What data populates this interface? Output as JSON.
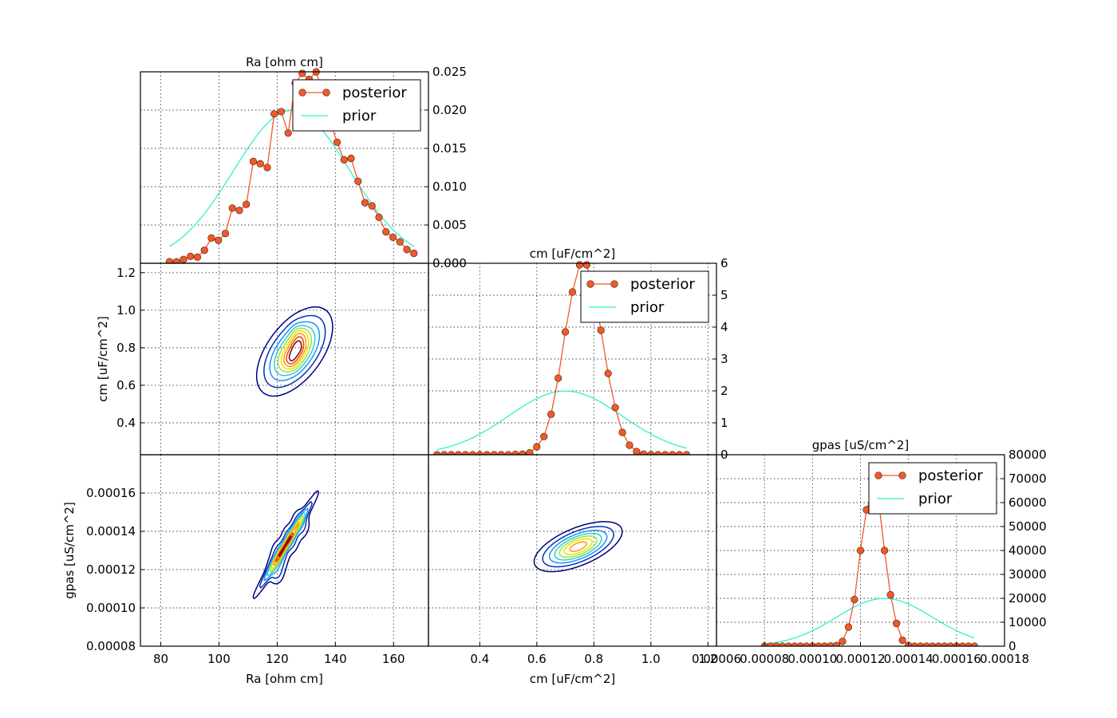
{
  "colors": {
    "posterior": "#F05A28",
    "posterior_marker_edge": "#3a1a0a",
    "prior": "#33F0C8",
    "contour_levels": [
      "#00007F",
      "#0033B2",
      "#1E90FF",
      "#33CCCC",
      "#99E24D",
      "#E6E600",
      "#FF9900",
      "#E64500",
      "#7F0000"
    ]
  },
  "chart_data": [
    {
      "type": "line",
      "panel": "Ra marginal",
      "title": "Ra [ohm cm]",
      "xlim": [
        73,
        172
      ],
      "ylim": [
        0,
        0.025
      ],
      "y_axis_side": "right",
      "xticks": [
        80,
        100,
        120,
        140,
        160
      ],
      "yticks": [
        0.0,
        0.005,
        0.01,
        0.015,
        0.02,
        0.025
      ],
      "ytick_labels": [
        "0.000",
        "0.005",
        "0.010",
        "0.015",
        "0.020",
        "0.025"
      ],
      "grid": true,
      "legend": "top-right",
      "series": [
        {
          "name": "posterior",
          "marker": "circle",
          "x": [
            83,
            85.4,
            87.8,
            90.2,
            92.6,
            95,
            97.4,
            99.8,
            102.2,
            104.6,
            107,
            109.4,
            111.8,
            114.2,
            116.6,
            119,
            121.4,
            123.8,
            126.2,
            128.6,
            131,
            133.4,
            135.8,
            138.2,
            140.6,
            143,
            145.4,
            147.8,
            150.2,
            152.6,
            155,
            157.4,
            159.8,
            162.2,
            164.6,
            167
          ],
          "values": [
            0.0002,
            0.0002,
            0.0005,
            0.0009,
            0.0008,
            0.0017,
            0.0033,
            0.003,
            0.0039,
            0.0072,
            0.0069,
            0.0077,
            0.0133,
            0.013,
            0.0125,
            0.0195,
            0.0198,
            0.017,
            0.0235,
            0.0248,
            0.024,
            0.025,
            0.022,
            0.0185,
            0.0158,
            0.0135,
            0.0137,
            0.0107,
            0.0079,
            0.0075,
            0.006,
            0.0041,
            0.0034,
            0.0028,
            0.0018,
            0.0013
          ]
        },
        {
          "name": "prior",
          "distribution": "normal",
          "mean": 125,
          "sd": 20
        }
      ]
    },
    {
      "type": "line",
      "panel": "cm marginal",
      "title": "cm [uF/cm^2]",
      "xlim": [
        0.22,
        1.23
      ],
      "ylim": [
        0,
        6
      ],
      "y_axis_side": "right",
      "yticks": [
        0,
        1,
        2,
        3,
        4,
        5,
        6
      ],
      "grid": true,
      "legend": "top-right",
      "series": [
        {
          "name": "posterior",
          "marker": "circle",
          "x": [
            0.25,
            0.275,
            0.3,
            0.325,
            0.35,
            0.375,
            0.4,
            0.425,
            0.45,
            0.475,
            0.5,
            0.525,
            0.55,
            0.575,
            0.6,
            0.625,
            0.65,
            0.675,
            0.7,
            0.725,
            0.75,
            0.775,
            0.8,
            0.825,
            0.85,
            0.875,
            0.9,
            0.925,
            0.95,
            0.975,
            1.0,
            1.025,
            1.05,
            1.075,
            1.1,
            1.125
          ],
          "values": [
            0,
            0,
            0,
            0,
            0,
            0,
            0,
            0,
            0,
            0,
            0,
            0.01,
            0.02,
            0.06,
            0.25,
            0.57,
            1.27,
            2.4,
            3.85,
            5.1,
            5.95,
            5.95,
            5.1,
            3.9,
            2.55,
            1.48,
            0.7,
            0.3,
            0.1,
            0.02,
            0,
            0,
            0,
            0,
            0,
            0
          ]
        },
        {
          "name": "prior",
          "distribution": "normal",
          "mean": 0.7,
          "sd": 0.2
        }
      ]
    },
    {
      "type": "line",
      "panel": "gpas marginal",
      "title": "gpas [uS/cm^2]",
      "xlim": [
        6e-05,
        0.00018
      ],
      "ylim": [
        0,
        80000
      ],
      "y_axis_side": "right",
      "xticks": [
        6e-05,
        8e-05,
        0.0001,
        0.00012,
        0.00014,
        0.00016,
        0.00018
      ],
      "xtick_labels": [
        "0.00006",
        "0.00008",
        "0.00010",
        "0.00012",
        "0.00014",
        "0.00016",
        "0.00018"
      ],
      "yticks": [
        0,
        10000,
        20000,
        30000,
        40000,
        50000,
        60000,
        70000,
        80000
      ],
      "grid": true,
      "legend": "top-right",
      "series": [
        {
          "name": "posterior",
          "marker": "circle",
          "x": [
            8e-05,
            8.25e-05,
            8.5e-05,
            8.75e-05,
            9e-05,
            9.25e-05,
            9.5e-05,
            9.75e-05,
            0.0001,
            0.0001025,
            0.000105,
            0.0001075,
            0.00011,
            0.0001125,
            0.000115,
            0.0001175,
            0.00012,
            0.0001225,
            0.000125,
            0.0001275,
            0.00013,
            0.0001325,
            0.000135,
            0.0001375,
            0.00014,
            0.0001425,
            0.000145,
            0.0001475,
            0.00015,
            0.0001525,
            0.000155,
            0.0001575,
            0.00016,
            0.0001625,
            0.000165,
            0.0001675
          ],
          "values": [
            0,
            0,
            0,
            0,
            0,
            0,
            0,
            0,
            0,
            0,
            0,
            100,
            300,
            2000,
            8000,
            19500,
            40000,
            57000,
            64000,
            61000,
            40000,
            21500,
            9500,
            2500,
            300,
            0,
            0,
            0,
            0,
            0,
            0,
            0,
            0,
            0,
            0,
            0
          ]
        },
        {
          "name": "prior",
          "distribution": "normal",
          "mean": 0.00013,
          "sd": 2e-05
        }
      ]
    },
    {
      "type": "contour",
      "panel": "cm vs Ra",
      "xlabel": "",
      "ylabel": "cm [uF/cm^2]",
      "xlim": [
        73,
        172
      ],
      "ylim": [
        0.23,
        1.25
      ],
      "yticks": [
        0.4,
        0.6,
        0.8,
        1.0,
        1.2
      ],
      "grid": true,
      "density": {
        "x_center": 126,
        "y_center": 0.78,
        "x_sd": 5.5,
        "y_sd": 0.1,
        "correlation": 0.55
      },
      "modes": [
        {
          "x": 125,
          "y": 0.73
        },
        {
          "x": 127,
          "y": 0.8
        },
        {
          "x": 127.5,
          "y": 0.87
        }
      ]
    },
    {
      "type": "contour",
      "panel": "gpas vs Ra",
      "xlabel": "Ra [ohm cm]",
      "ylabel": "gpas [uS/cm^2]",
      "xlim": [
        73,
        172
      ],
      "ylim": [
        8e-05,
        0.00018
      ],
      "xticks": [
        80,
        100,
        120,
        140,
        160
      ],
      "yticks": [
        8e-05,
        0.0001,
        0.00012,
        0.00014,
        0.00016
      ],
      "ytick_labels": [
        "0.00008",
        "0.00010",
        "0.00012",
        "0.00014",
        "0.00016"
      ],
      "grid": true,
      "density": {
        "x_center": 123,
        "y_center": 0.000133,
        "x_sd": 4.8,
        "y_sd": 1.2e-05,
        "correlation": 0.985
      },
      "modes": [
        {
          "x": 121,
          "y": 0.000128
        },
        {
          "x": 124.5,
          "y": 0.000136
        },
        {
          "x": 128,
          "y": 0.000144
        },
        {
          "x": 119.5,
          "y": 0.00012
        }
      ]
    },
    {
      "type": "contour",
      "panel": "gpas vs cm",
      "xlabel": "cm [uF/cm^2]",
      "ylabel": "",
      "xlim": [
        0.22,
        1.23
      ],
      "ylim": [
        8e-05,
        0.00018
      ],
      "xticks": [
        0.4,
        0.6,
        0.8,
        1.0,
        1.2
      ],
      "xtick_labels": [
        "0.4",
        "0.6",
        "0.8",
        "1.0",
        "1.2"
      ],
      "grid": true,
      "density": {
        "x_center": 0.745,
        "y_center": 0.000132,
        "x_sd": 0.065,
        "y_sd": 5.5e-06,
        "correlation": 0.6
      }
    }
  ]
}
